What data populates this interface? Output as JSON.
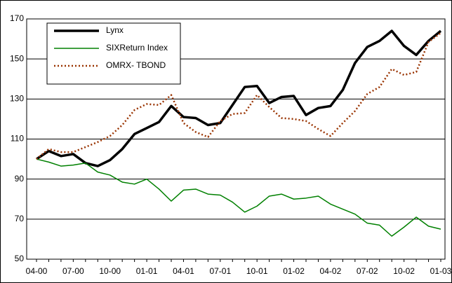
{
  "chart_data": {
    "type": "line",
    "categories": [
      "04-00",
      null,
      null,
      "07-00",
      null,
      null,
      "10-00",
      null,
      null,
      "01-01",
      null,
      null,
      "04-01",
      null,
      null,
      "07-01",
      null,
      null,
      "10-01",
      null,
      null,
      "01-02",
      null,
      null,
      "04-02",
      null,
      null,
      "07-02",
      null,
      null,
      "10-02",
      null,
      null,
      "01-03"
    ],
    "series": [
      {
        "name": "Lynx",
        "color": "#000000",
        "values": [
          100,
          104,
          101.5,
          102.5,
          98,
          96.5,
          99.5,
          105,
          112.5,
          115.5,
          118.5,
          126.5,
          121,
          120.5,
          117,
          118,
          127,
          136,
          136.5,
          128,
          131,
          131.5,
          122,
          125.5,
          126.5,
          134.5,
          148,
          156,
          159,
          164,
          156.5,
          152,
          159,
          164
        ]
      },
      {
        "name": "SIXReturn Index",
        "color": "#008000",
        "values": [
          100,
          98.5,
          96.5,
          97,
          98,
          93.5,
          92,
          88.5,
          87.5,
          90,
          85,
          79,
          84.5,
          85,
          82.5,
          82,
          78.5,
          73.5,
          76.5,
          81.5,
          82.5,
          80,
          80.5,
          81.5,
          77.5,
          75,
          72.5,
          68,
          67,
          61.5,
          66,
          71,
          66.5,
          65
        ]
      },
      {
        "name": "OMRX- TBOND",
        "color": "#993300",
        "values": [
          100,
          105,
          103.5,
          103.5,
          106,
          108.5,
          111.5,
          117,
          124.5,
          127.5,
          127,
          132,
          118,
          113.5,
          111,
          119,
          122.5,
          123,
          132,
          126,
          120.5,
          120,
          119,
          115,
          111.5,
          118,
          124,
          132.5,
          136,
          145,
          142,
          143.5,
          158.5,
          163
        ]
      }
    ],
    "ylim": [
      50,
      170
    ],
    "yticks": [
      50,
      70,
      90,
      110,
      130,
      150,
      170
    ],
    "grid": true,
    "legend": "top-left"
  }
}
